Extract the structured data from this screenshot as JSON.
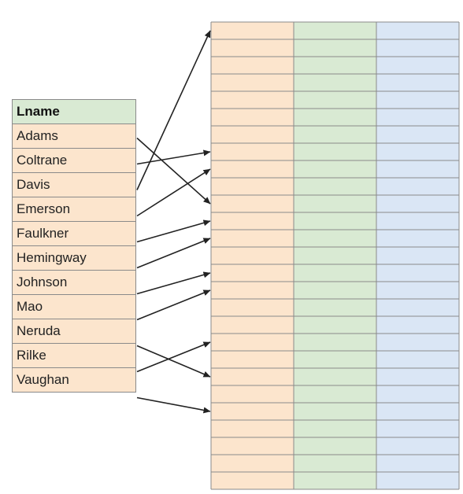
{
  "table": {
    "header": "Lname",
    "names": [
      "Adams",
      "Coltrane",
      "Davis",
      "Emerson",
      "Faulkner",
      "Hemingway",
      "Johnson",
      "Mao",
      "Neruda",
      "Rilke",
      "Vaughan"
    ]
  },
  "grid": {
    "rows": 27,
    "column_colors": [
      "#fce5cd",
      "#d9ead3",
      "#dae6f5"
    ],
    "line_color": "#8a8a8a"
  },
  "mappings": [
    {
      "name": "Adams",
      "row": 11
    },
    {
      "name": "Coltrane",
      "row": 8
    },
    {
      "name": "Davis",
      "row": 1
    },
    {
      "name": "Emerson",
      "row": 9
    },
    {
      "name": "Faulkner",
      "row": 12
    },
    {
      "name": "Hemingway",
      "row": 13
    },
    {
      "name": "Johnson",
      "row": 15
    },
    {
      "name": "Mao",
      "row": 16
    },
    {
      "name": "Neruda",
      "row": 21
    },
    {
      "name": "Rilke",
      "row": 19
    },
    {
      "name": "Vaughan",
      "row": 23
    }
  ]
}
